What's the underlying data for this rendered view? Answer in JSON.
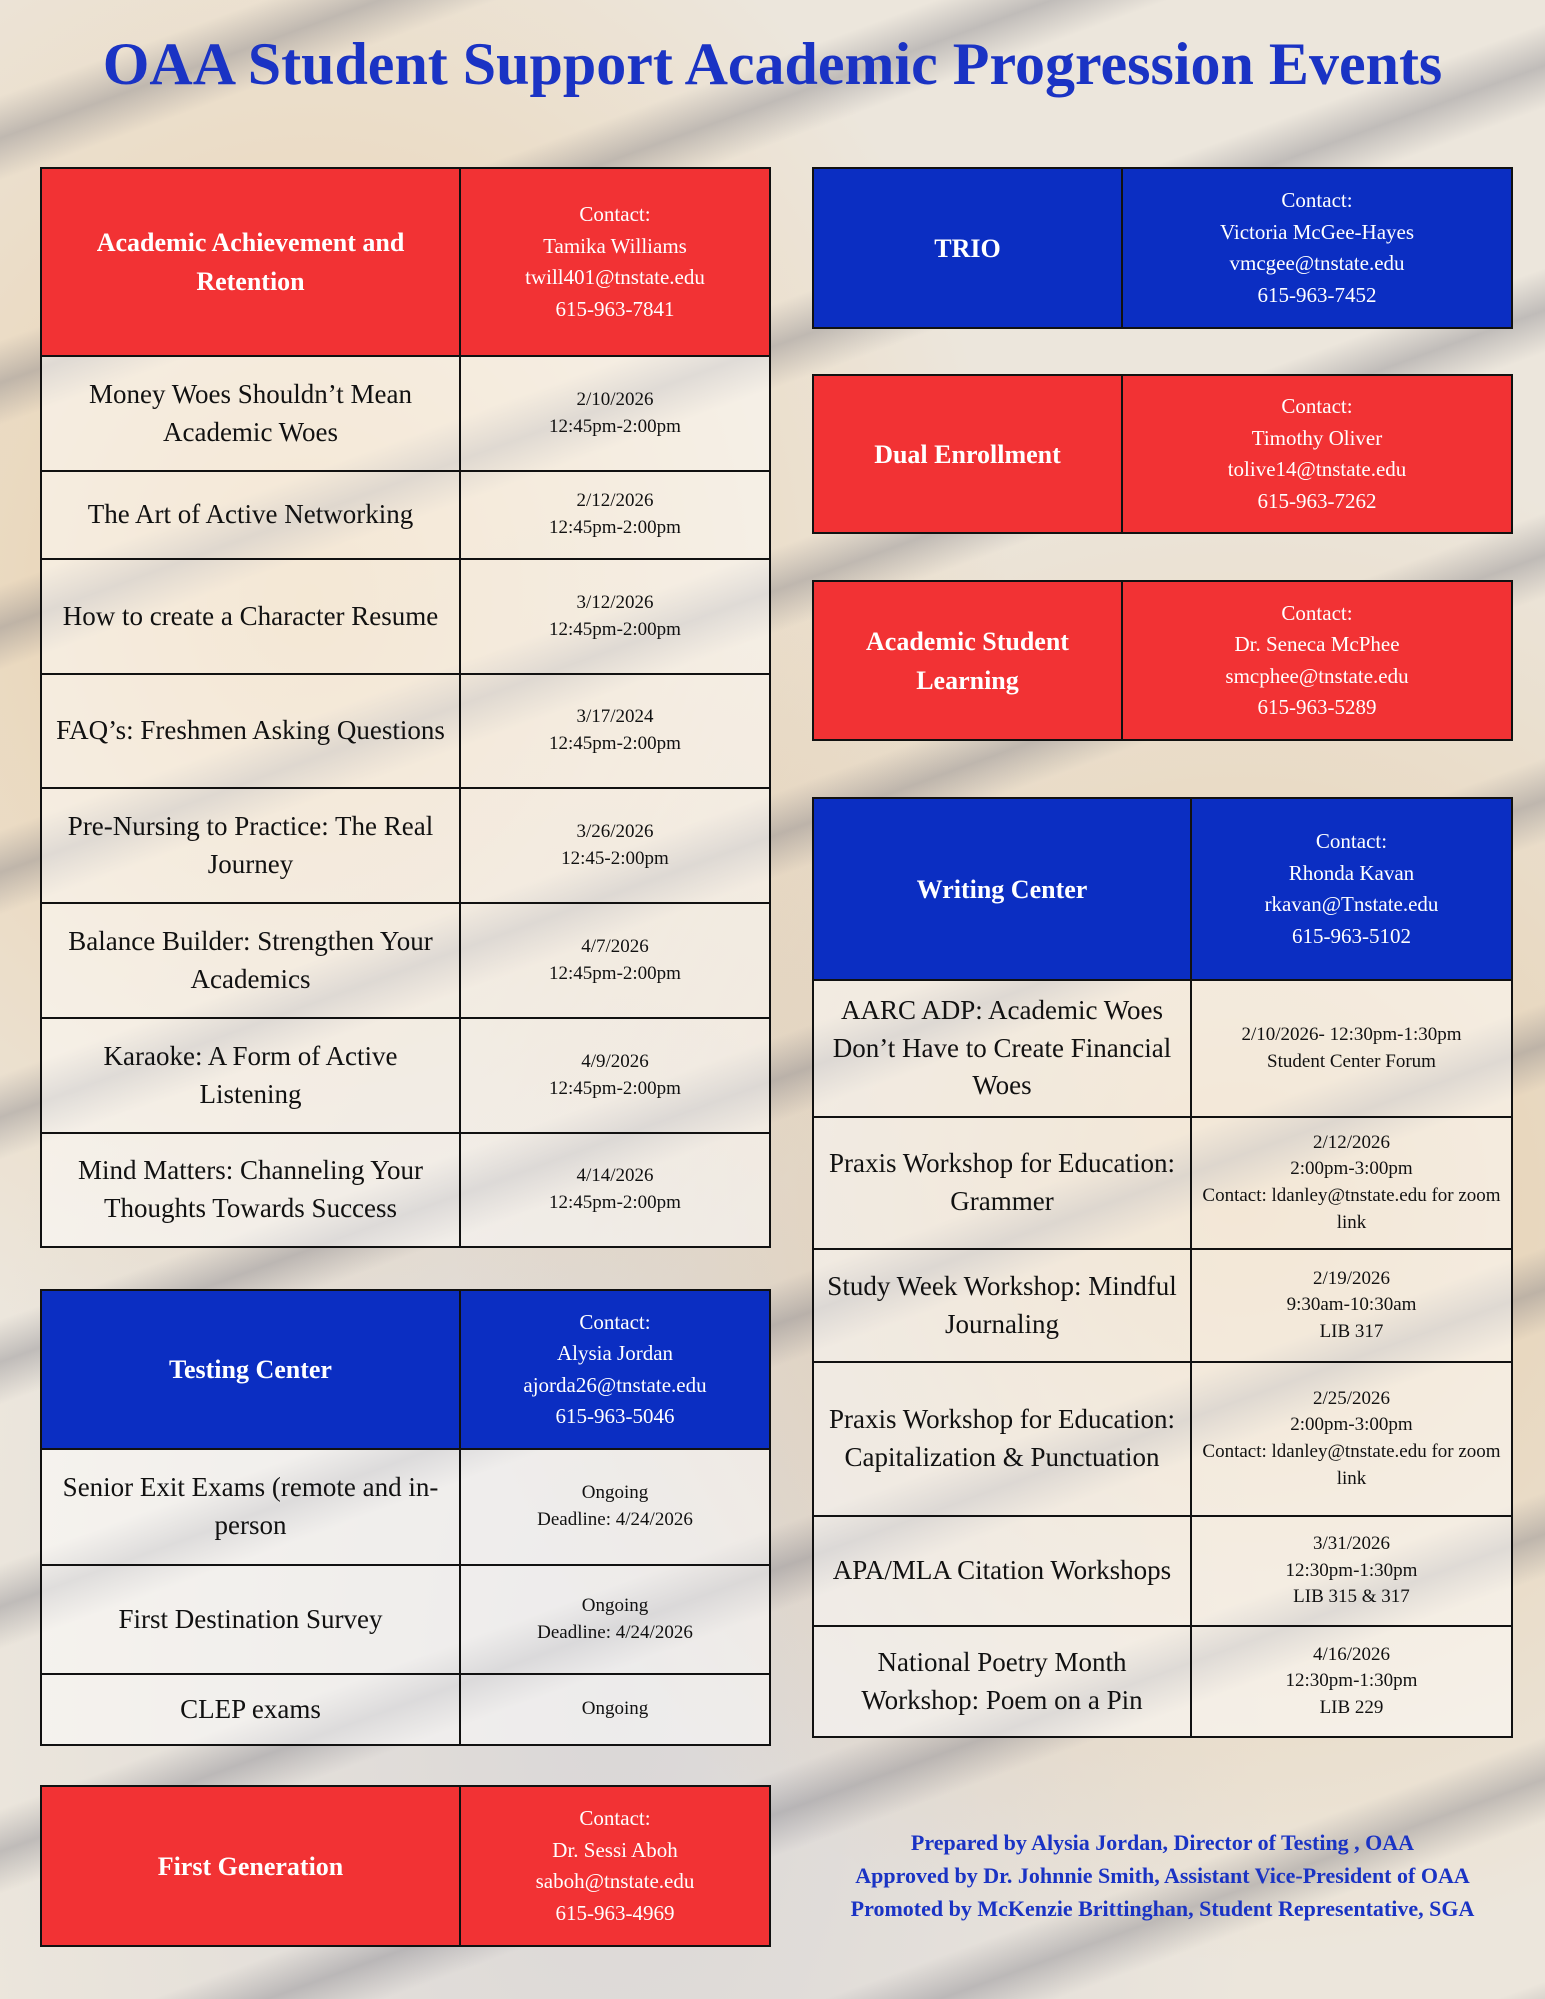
{
  "title": "OAA Student Support Academic Progression Events",
  "colors": {
    "red": "#f23234",
    "blue": "#0b2ec2",
    "title": "#1a33c4"
  },
  "tables": [
    {
      "id": "academic-achievement",
      "color": "red",
      "name": "Academic Achievement and Retention",
      "contact": [
        "Contact:",
        "Tamika Williams",
        "twill401@tnstate.edu",
        "615-963-7841"
      ],
      "rows": [
        {
          "event": "Money Woes Shouldn’t Mean Academic Woes",
          "details": [
            "2/10/2026",
            "12:45pm-2:00pm"
          ]
        },
        {
          "event": "The Art of Active Networking",
          "details": [
            "2/12/2026",
            "12:45pm-2:00pm"
          ]
        },
        {
          "event": "How to create a Character Resume",
          "details": [
            "3/12/2026",
            "12:45pm-2:00pm"
          ]
        },
        {
          "event": "FAQ’s: Freshmen Asking Questions",
          "details": [
            "3/17/2024",
            "12:45pm-2:00pm"
          ]
        },
        {
          "event": "Pre-Nursing to Practice: The Real Journey",
          "details": [
            "3/26/2026",
            "12:45-2:00pm"
          ]
        },
        {
          "event": "Balance Builder: Strengthen Your Academics",
          "details": [
            "4/7/2026",
            "12:45pm-2:00pm"
          ]
        },
        {
          "event": "Karaoke: A Form of Active Listening",
          "details": [
            "4/9/2026",
            "12:45pm-2:00pm"
          ]
        },
        {
          "event": "Mind Matters: Channeling Your Thoughts Towards Success",
          "details": [
            "4/14/2026",
            "12:45pm-2:00pm"
          ]
        }
      ]
    },
    {
      "id": "testing-center",
      "color": "blue",
      "name": "Testing Center",
      "contact": [
        "Contact:",
        "Alysia Jordan",
        "ajorda26@tnstate.edu",
        "615-963-5046"
      ],
      "rows": [
        {
          "event": "Senior Exit Exams (remote and in-person",
          "details": [
            "Ongoing",
            "Deadline: 4/24/2026"
          ]
        },
        {
          "event": "First Destination Survey",
          "details": [
            "Ongoing",
            "Deadline: 4/24/2026"
          ]
        },
        {
          "event": "CLEP exams",
          "details": [
            "Ongoing"
          ]
        }
      ]
    },
    {
      "id": "first-generation",
      "color": "red",
      "name": "First Generation",
      "contact": [
        "Contact:",
        "Dr. Sessi Aboh",
        "saboh@tnstate.edu",
        "615-963-4969"
      ],
      "rows": []
    },
    {
      "id": "trio",
      "color": "blue",
      "name": "TRIO",
      "contact": [
        "Contact:",
        "Victoria McGee-Hayes",
        "vmcgee@tnstate.edu",
        "615-963-7452"
      ],
      "rows": []
    },
    {
      "id": "dual-enrollment",
      "color": "red",
      "name": "Dual Enrollment",
      "contact": [
        "Contact:",
        "Timothy Oliver",
        "tolive14@tnstate.edu",
        "615-963-7262"
      ],
      "rows": []
    },
    {
      "id": "academic-student-learning",
      "color": "red",
      "name": "Academic Student Learning",
      "contact": [
        "Contact:",
        "Dr. Seneca McPhee",
        "smcphee@tnstate.edu",
        "615-963-5289"
      ],
      "rows": []
    },
    {
      "id": "writing-center",
      "color": "blue",
      "name": "Writing Center",
      "contact": [
        "Contact:",
        "Rhonda Kavan",
        "rkavan@Tnstate.edu",
        "615-963-5102"
      ],
      "rows": [
        {
          "event": "AARC ADP: Academic Woes Don’t Have to Create Financial Woes",
          "details": [
            "2/10/2026- 12:30pm-1:30pm",
            "Student Center Forum"
          ]
        },
        {
          "event": "Praxis Workshop for Education: Grammer",
          "details": [
            "2/12/2026",
            "2:00pm-3:00pm",
            "Contact: ldanley@tnstate.edu for zoom link"
          ]
        },
        {
          "event": "Study Week Workshop: Mindful Journaling",
          "details": [
            "2/19/2026",
            "9:30am-10:30am",
            "LIB 317"
          ]
        },
        {
          "event": "Praxis Workshop for Education: Capitalization & Punctuation",
          "details": [
            "2/25/2026",
            "2:00pm-3:00pm",
            "Contact: ldanley@tnstate.edu for zoom link"
          ]
        },
        {
          "event": "APA/MLA Citation Workshops",
          "details": [
            "3/31/2026",
            "12:30pm-1:30pm",
            "LIB 315 & 317"
          ]
        },
        {
          "event": "National Poetry Month Workshop: Poem on a Pin",
          "details": [
            "4/16/2026",
            "12:30pm-1:30pm",
            "LIB 229"
          ]
        }
      ]
    }
  ],
  "footer": [
    "Prepared by Alysia Jordan, Director of Testing , OAA",
    "Approved by Dr. Johnnie Smith, Assistant Vice-President of OAA",
    "Promoted by McKenzie Brittinghan, Student Representative, SGA"
  ]
}
